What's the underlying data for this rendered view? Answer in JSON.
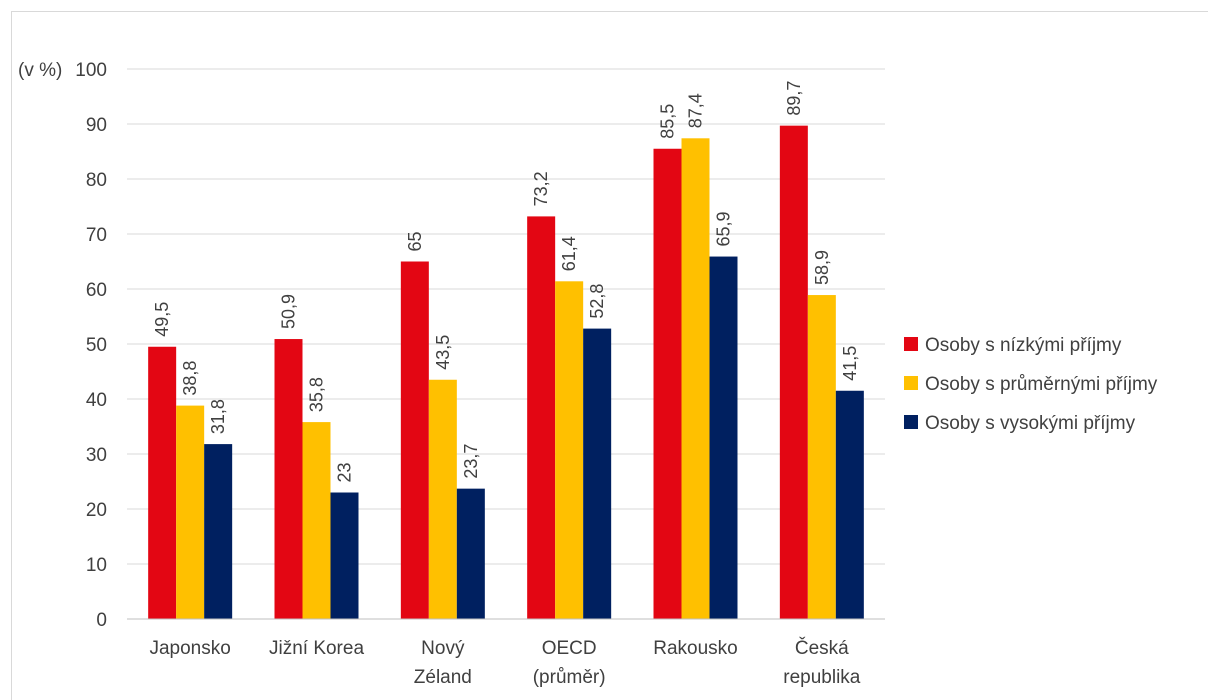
{
  "chart_data": {
    "type": "bar",
    "unit_label": "(v %)",
    "ylim": [
      0,
      100
    ],
    "y_ticks": [
      0,
      10,
      20,
      30,
      40,
      50,
      60,
      70,
      80,
      90,
      100
    ],
    "grid": true,
    "legend_position": "right",
    "categories": [
      [
        "Japonsko"
      ],
      [
        "Jižní Korea"
      ],
      [
        "Nový",
        "Zéland"
      ],
      [
        "OECD",
        "(průměr)"
      ],
      [
        "Rakousko"
      ],
      [
        "Česká",
        "republika"
      ]
    ],
    "series": [
      {
        "name": "Osoby s nízkými příjmy",
        "color": "#e30613",
        "values": [
          49.5,
          50.9,
          65,
          73.2,
          85.5,
          89.7
        ],
        "labels": [
          "49,5",
          "50,9",
          "65",
          "73,2",
          "85,5",
          "89,7"
        ]
      },
      {
        "name": "Osoby s průměrnými příjmy",
        "color": "#ffc000",
        "values": [
          38.8,
          35.8,
          43.5,
          61.4,
          87.4,
          58.9
        ],
        "labels": [
          "38,8",
          "35,8",
          "43,5",
          "61,4",
          "87,4",
          "58,9"
        ]
      },
      {
        "name": "Osoby s vysokými příjmy",
        "color": "#002060",
        "values": [
          31.8,
          23,
          23.7,
          52.8,
          65.9,
          41.5
        ],
        "labels": [
          "31,8",
          "23",
          "23,7",
          "52,8",
          "65,9",
          "41,5"
        ]
      }
    ]
  }
}
